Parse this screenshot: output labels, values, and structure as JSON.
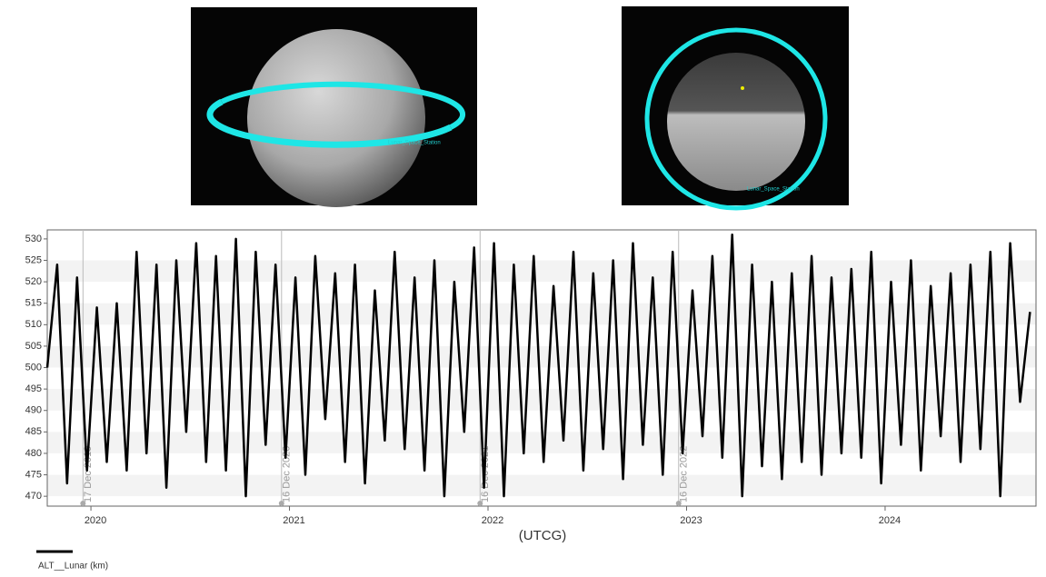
{
  "images": [
    {
      "label": "Lunar_Space_Station"
    },
    {
      "label": "Lunar_Space_Station"
    }
  ],
  "chart_data": {
    "type": "line",
    "x_label": "(UTCG)",
    "x": [
      2019.78,
      2019.83,
      2019.88,
      2019.93,
      2019.98,
      2020.03,
      2020.08,
      2020.13,
      2020.18,
      2020.23,
      2020.28,
      2020.33,
      2020.38,
      2020.43,
      2020.48,
      2020.53,
      2020.58,
      2020.63,
      2020.68,
      2020.73,
      2020.78,
      2020.83,
      2020.88,
      2020.93,
      2020.98,
      2021.03,
      2021.08,
      2021.13,
      2021.18,
      2021.23,
      2021.28,
      2021.33,
      2021.38,
      2021.43,
      2021.48,
      2021.53,
      2021.58,
      2021.63,
      2021.68,
      2021.73,
      2021.78,
      2021.83,
      2021.88,
      2021.93,
      2021.98,
      2022.03,
      2022.08,
      2022.13,
      2022.18,
      2022.23,
      2022.28,
      2022.33,
      2022.38,
      2022.43,
      2022.48,
      2022.53,
      2022.58,
      2022.63,
      2022.68,
      2022.73,
      2022.78,
      2022.83,
      2022.88,
      2022.93,
      2022.98,
      2023.03,
      2023.08,
      2023.13,
      2023.18,
      2023.23,
      2023.28,
      2023.33,
      2023.38,
      2023.43,
      2023.48,
      2023.53,
      2023.58,
      2023.63,
      2023.68,
      2023.73,
      2023.78,
      2023.83,
      2023.88,
      2023.93,
      2023.98,
      2024.03,
      2024.08,
      2024.13,
      2024.18,
      2024.23,
      2024.28,
      2024.33,
      2024.38,
      2024.43,
      2024.48,
      2024.53,
      2024.58,
      2024.63,
      2024.68,
      2024.73
    ],
    "series": [
      {
        "name": "ALT__Lunar (km)",
        "color": "#000000",
        "values": [
          500,
          524,
          473,
          521,
          476,
          514,
          478,
          515,
          476,
          527,
          480,
          524,
          472,
          525,
          485,
          529,
          478,
          526,
          476,
          530,
          470,
          527,
          482,
          524,
          479,
          521,
          475,
          526,
          488,
          522,
          478,
          524,
          473,
          518,
          483,
          527,
          481,
          521,
          476,
          525,
          470,
          520,
          485,
          528,
          472,
          529,
          470,
          524,
          480,
          526,
          478,
          519,
          483,
          527,
          476,
          522,
          481,
          525,
          474,
          529,
          482,
          521,
          475,
          527,
          480,
          518,
          484,
          526,
          479,
          531,
          470,
          524,
          477,
          520,
          474,
          522,
          478,
          526,
          475,
          521,
          480,
          523,
          479,
          527,
          473,
          520,
          482,
          525,
          476,
          519,
          484,
          522,
          478,
          524,
          481,
          527,
          470,
          529,
          492,
          513
        ]
      }
    ],
    "xlim": [
      2019.78,
      2024.76
    ],
    "xticks": [
      2020,
      2021,
      2022,
      2023,
      2024
    ],
    "ylim": [
      467.7,
      532.1
    ],
    "yticks": [
      470,
      475,
      480,
      485,
      490,
      495,
      500,
      505,
      510,
      515,
      520,
      525,
      530
    ],
    "annotations": [
      {
        "x": 2019.96,
        "label": "17 Dec 2019"
      },
      {
        "x": 2020.96,
        "label": "16 Dec 2020"
      },
      {
        "x": 2021.96,
        "label": "16 Dec 2021"
      },
      {
        "x": 2022.96,
        "label": "16 Dec 2022"
      }
    ],
    "bands": true
  }
}
